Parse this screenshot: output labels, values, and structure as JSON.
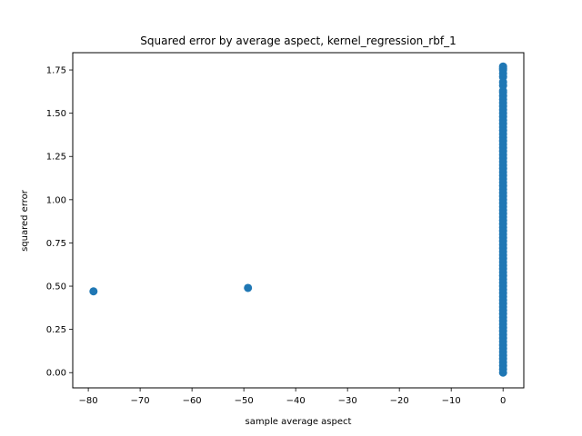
{
  "chart_data": {
    "type": "scatter",
    "title": "Squared error by average aspect, kernel_regression_rbf_1",
    "xlabel": "sample average aspect",
    "ylabel": "squared error",
    "xlim": [
      -83.0,
      4.0
    ],
    "ylim": [
      -0.088,
      1.85
    ],
    "xticks": [
      -80,
      -70,
      -60,
      -50,
      -40,
      -30,
      -20,
      -10,
      0
    ],
    "xtick_labels": [
      "−80",
      "−70",
      "−60",
      "−50",
      "−40",
      "−30",
      "−20",
      "−10",
      "0"
    ],
    "yticks": [
      0.0,
      0.25,
      0.5,
      0.75,
      1.0,
      1.25,
      1.5,
      1.75
    ],
    "ytick_labels": [
      "0.00",
      "0.25",
      "0.50",
      "0.75",
      "1.00",
      "1.25",
      "1.50",
      "1.75"
    ],
    "grid": false,
    "marker_color": "#1f77b4",
    "series": [
      {
        "x": [
          -79,
          -49.2,
          0,
          0,
          0,
          0,
          0,
          0,
          0,
          0,
          0,
          0,
          0,
          0,
          0,
          0,
          0,
          0,
          0,
          0,
          0,
          0,
          0,
          0,
          0,
          0,
          0,
          0,
          0,
          0,
          0,
          0,
          0,
          0,
          0,
          0,
          0,
          0,
          0,
          0,
          0,
          0,
          0,
          0,
          0,
          0,
          0,
          0,
          0,
          0,
          0,
          0,
          0,
          0,
          0,
          0,
          0,
          0,
          0,
          0,
          0,
          0,
          0,
          0,
          0,
          0,
          0,
          0,
          0,
          0,
          0,
          0,
          0,
          0,
          0,
          0,
          0,
          0,
          0,
          0,
          0,
          0,
          0,
          0,
          0,
          0,
          0,
          0,
          0,
          0,
          0,
          0
        ],
        "y": [
          0.47,
          0.49,
          0.0,
          0.02,
          0.04,
          0.06,
          0.08,
          0.1,
          0.12,
          0.14,
          0.16,
          0.18,
          0.2,
          0.22,
          0.24,
          0.26,
          0.28,
          0.3,
          0.32,
          0.34,
          0.36,
          0.38,
          0.4,
          0.42,
          0.44,
          0.46,
          0.48,
          0.5,
          0.52,
          0.54,
          0.56,
          0.58,
          0.6,
          0.62,
          0.64,
          0.66,
          0.68,
          0.7,
          0.72,
          0.74,
          0.76,
          0.78,
          0.8,
          0.82,
          0.84,
          0.86,
          0.88,
          0.9,
          0.92,
          0.94,
          0.96,
          0.98,
          1.0,
          1.02,
          1.04,
          1.06,
          1.08,
          1.1,
          1.12,
          1.14,
          1.16,
          1.18,
          1.2,
          1.22,
          1.24,
          1.26,
          1.28,
          1.3,
          1.32,
          1.34,
          1.36,
          1.38,
          1.4,
          1.42,
          1.44,
          1.46,
          1.48,
          1.5,
          1.52,
          1.54,
          1.56,
          1.58,
          1.6,
          1.62,
          1.63,
          1.66,
          1.68,
          1.71,
          1.73,
          1.75,
          1.76,
          1.77
        ]
      }
    ]
  }
}
